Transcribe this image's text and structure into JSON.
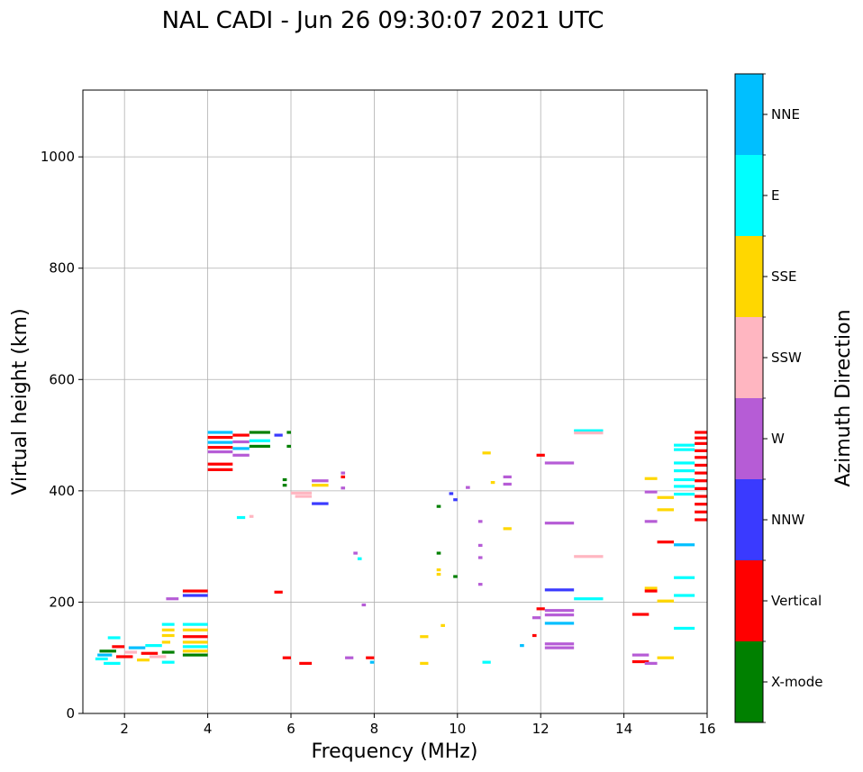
{
  "chart_data": {
    "type": "scatter",
    "title": "NAL CADI - Jun 26 09:30:07 2021 UTC",
    "xlabel": "Frequency (MHz)",
    "ylabel": "Virtual height (km)",
    "xlim": [
      1,
      16
    ],
    "ylim": [
      0,
      1120
    ],
    "x_ticks": [
      2,
      4,
      6,
      8,
      10,
      12,
      14,
      16
    ],
    "y_ticks": [
      0,
      200,
      400,
      600,
      800,
      1000
    ],
    "grid": true,
    "colorbar": {
      "label": "Azimuth Direction",
      "categories": [
        {
          "name": "X-mode",
          "color": "#008000"
        },
        {
          "name": "Vertical",
          "color": "#ff0000"
        },
        {
          "name": "NNW",
          "color": "#3a3aff"
        },
        {
          "name": "W",
          "color": "#b65cd6"
        },
        {
          "name": "SSW",
          "color": "#ffb6c1"
        },
        {
          "name": "SSE",
          "color": "#ffd700"
        },
        {
          "name": "E",
          "color": "#00ffff"
        },
        {
          "name": "NNE",
          "color": "#00bfff"
        }
      ]
    },
    "segments": [
      {
        "x1": 1.3,
        "x2": 1.6,
        "y": 98,
        "c": "E"
      },
      {
        "x1": 1.35,
        "x2": 1.7,
        "y": 105,
        "c": "NNE"
      },
      {
        "x1": 1.4,
        "x2": 1.8,
        "y": 112,
        "c": "X-mode"
      },
      {
        "x1": 1.5,
        "x2": 1.9,
        "y": 90,
        "c": "E"
      },
      {
        "x1": 1.7,
        "x2": 2.0,
        "y": 120,
        "c": "Vertical"
      },
      {
        "x1": 1.6,
        "x2": 1.9,
        "y": 136,
        "c": "E"
      },
      {
        "x1": 1.8,
        "x2": 2.2,
        "y": 102,
        "c": "Vertical"
      },
      {
        "x1": 2.0,
        "x2": 2.3,
        "y": 110,
        "c": "SSW"
      },
      {
        "x1": 2.1,
        "x2": 2.5,
        "y": 118,
        "c": "NNE"
      },
      {
        "x1": 2.3,
        "x2": 2.6,
        "y": 96,
        "c": "SSE"
      },
      {
        "x1": 2.4,
        "x2": 2.8,
        "y": 108,
        "c": "Vertical"
      },
      {
        "x1": 2.5,
        "x2": 2.9,
        "y": 122,
        "c": "E"
      },
      {
        "x1": 2.6,
        "x2": 3.0,
        "y": 102,
        "c": "SSW"
      },
      {
        "x1": 2.9,
        "x2": 3.1,
        "y": 128,
        "c": "SSE"
      },
      {
        "x1": 2.9,
        "x2": 3.2,
        "y": 150,
        "c": "SSE"
      },
      {
        "x1": 2.9,
        "x2": 3.2,
        "y": 160,
        "c": "E"
      },
      {
        "x1": 2.9,
        "x2": 3.2,
        "y": 92,
        "c": "E"
      },
      {
        "x1": 2.9,
        "x2": 3.2,
        "y": 110,
        "c": "X-mode"
      },
      {
        "x1": 2.9,
        "x2": 3.2,
        "y": 140,
        "c": "SSE"
      },
      {
        "x1": 3.4,
        "x2": 4.0,
        "y": 160,
        "c": "E"
      },
      {
        "x1": 3.4,
        "x2": 4.0,
        "y": 150,
        "c": "SSE"
      },
      {
        "x1": 3.4,
        "x2": 4.0,
        "y": 138,
        "c": "Vertical"
      },
      {
        "x1": 3.4,
        "x2": 4.0,
        "y": 128,
        "c": "SSE"
      },
      {
        "x1": 3.4,
        "x2": 4.0,
        "y": 120,
        "c": "E"
      },
      {
        "x1": 3.4,
        "x2": 4.0,
        "y": 112,
        "c": "SSE"
      },
      {
        "x1": 3.4,
        "x2": 4.0,
        "y": 105,
        "c": "X-mode"
      },
      {
        "x1": 3.4,
        "x2": 4.0,
        "y": 220,
        "c": "Vertical"
      },
      {
        "x1": 3.4,
        "x2": 4.0,
        "y": 212,
        "c": "NNW"
      },
      {
        "x1": 3.0,
        "x2": 3.3,
        "y": 206,
        "c": "W"
      },
      {
        "x1": 4.0,
        "x2": 4.6,
        "y": 505,
        "c": "NNE"
      },
      {
        "x1": 4.0,
        "x2": 4.6,
        "y": 496,
        "c": "Vertical"
      },
      {
        "x1": 4.0,
        "x2": 4.6,
        "y": 487,
        "c": "NNE"
      },
      {
        "x1": 4.0,
        "x2": 4.6,
        "y": 478,
        "c": "Vertical"
      },
      {
        "x1": 4.0,
        "x2": 4.6,
        "y": 470,
        "c": "W"
      },
      {
        "x1": 4.0,
        "x2": 4.6,
        "y": 448,
        "c": "Vertical"
      },
      {
        "x1": 4.0,
        "x2": 4.6,
        "y": 438,
        "c": "Vertical"
      },
      {
        "x1": 4.6,
        "x2": 5.0,
        "y": 500,
        "c": "Vertical"
      },
      {
        "x1": 4.6,
        "x2": 5.0,
        "y": 488,
        "c": "W"
      },
      {
        "x1": 4.6,
        "x2": 5.0,
        "y": 476,
        "c": "NNE"
      },
      {
        "x1": 4.6,
        "x2": 5.0,
        "y": 464,
        "c": "W"
      },
      {
        "x1": 5.0,
        "x2": 5.5,
        "y": 505,
        "c": "X-mode"
      },
      {
        "x1": 5.0,
        "x2": 5.5,
        "y": 490,
        "c": "E"
      },
      {
        "x1": 5.0,
        "x2": 5.5,
        "y": 480,
        "c": "X-mode"
      },
      {
        "x1": 5.9,
        "x2": 6.0,
        "y": 505,
        "c": "X-mode"
      },
      {
        "x1": 5.9,
        "x2": 6.0,
        "y": 480,
        "c": "X-mode"
      },
      {
        "x1": 5.6,
        "x2": 5.8,
        "y": 500,
        "c": "NNW"
      },
      {
        "x1": 4.7,
        "x2": 4.9,
        "y": 352,
        "c": "E"
      },
      {
        "x1": 5.0,
        "x2": 5.1,
        "y": 354,
        "c": "SSW"
      },
      {
        "x1": 5.8,
        "x2": 5.9,
        "y": 420,
        "c": "X-mode"
      },
      {
        "x1": 5.8,
        "x2": 5.9,
        "y": 410,
        "c": "X-mode"
      },
      {
        "x1": 6.0,
        "x2": 6.5,
        "y": 396,
        "c": "SSW"
      },
      {
        "x1": 6.1,
        "x2": 6.5,
        "y": 390,
        "c": "SSW"
      },
      {
        "x1": 6.5,
        "x2": 6.9,
        "y": 418,
        "c": "W"
      },
      {
        "x1": 6.5,
        "x2": 6.9,
        "y": 410,
        "c": "SSE"
      },
      {
        "x1": 6.5,
        "x2": 6.9,
        "y": 377,
        "c": "NNW"
      },
      {
        "x1": 7.2,
        "x2": 7.3,
        "y": 432,
        "c": "W"
      },
      {
        "x1": 7.2,
        "x2": 7.3,
        "y": 425,
        "c": "Vertical"
      },
      {
        "x1": 7.2,
        "x2": 7.3,
        "y": 405,
        "c": "W"
      },
      {
        "x1": 5.8,
        "x2": 6.0,
        "y": 100,
        "c": "Vertical"
      },
      {
        "x1": 5.6,
        "x2": 5.8,
        "y": 218,
        "c": "Vertical"
      },
      {
        "x1": 6.2,
        "x2": 6.5,
        "y": 90,
        "c": "Vertical"
      },
      {
        "x1": 7.5,
        "x2": 7.6,
        "y": 288,
        "c": "W"
      },
      {
        "x1": 7.6,
        "x2": 7.7,
        "y": 278,
        "c": "E"
      },
      {
        "x1": 7.7,
        "x2": 7.8,
        "y": 195,
        "c": "W"
      },
      {
        "x1": 7.8,
        "x2": 8.0,
        "y": 100,
        "c": "Vertical"
      },
      {
        "x1": 7.9,
        "x2": 8.0,
        "y": 92,
        "c": "NNE"
      },
      {
        "x1": 7.3,
        "x2": 7.5,
        "y": 100,
        "c": "W"
      },
      {
        "x1": 9.1,
        "x2": 9.3,
        "y": 138,
        "c": "SSE"
      },
      {
        "x1": 9.1,
        "x2": 9.3,
        "y": 90,
        "c": "SSE"
      },
      {
        "x1": 9.5,
        "x2": 9.6,
        "y": 372,
        "c": "X-mode"
      },
      {
        "x1": 9.5,
        "x2": 9.6,
        "y": 288,
        "c": "X-mode"
      },
      {
        "x1": 9.5,
        "x2": 9.6,
        "y": 258,
        "c": "SSE"
      },
      {
        "x1": 9.5,
        "x2": 9.6,
        "y": 250,
        "c": "SSE"
      },
      {
        "x1": 9.6,
        "x2": 9.7,
        "y": 158,
        "c": "SSE"
      },
      {
        "x1": 9.8,
        "x2": 9.9,
        "y": 395,
        "c": "NNW"
      },
      {
        "x1": 9.9,
        "x2": 10.0,
        "y": 384,
        "c": "NNW"
      },
      {
        "x1": 9.9,
        "x2": 10.0,
        "y": 246,
        "c": "X-mode"
      },
      {
        "x1": 10.2,
        "x2": 10.3,
        "y": 406,
        "c": "W"
      },
      {
        "x1": 10.5,
        "x2": 10.6,
        "y": 345,
        "c": "W"
      },
      {
        "x1": 10.5,
        "x2": 10.6,
        "y": 302,
        "c": "W"
      },
      {
        "x1": 10.5,
        "x2": 10.6,
        "y": 280,
        "c": "W"
      },
      {
        "x1": 10.5,
        "x2": 10.6,
        "y": 232,
        "c": "W"
      },
      {
        "x1": 10.6,
        "x2": 10.8,
        "y": 92,
        "c": "E"
      },
      {
        "x1": 10.6,
        "x2": 10.8,
        "y": 468,
        "c": "SSE"
      },
      {
        "x1": 10.8,
        "x2": 10.9,
        "y": 415,
        "c": "SSE"
      },
      {
        "x1": 11.1,
        "x2": 11.3,
        "y": 425,
        "c": "W"
      },
      {
        "x1": 11.1,
        "x2": 11.3,
        "y": 412,
        "c": "W"
      },
      {
        "x1": 11.1,
        "x2": 11.3,
        "y": 332,
        "c": "SSE"
      },
      {
        "x1": 11.5,
        "x2": 11.6,
        "y": 122,
        "c": "NNE"
      },
      {
        "x1": 11.8,
        "x2": 11.9,
        "y": 140,
        "c": "Vertical"
      },
      {
        "x1": 11.8,
        "x2": 12.0,
        "y": 172,
        "c": "W"
      },
      {
        "x1": 11.9,
        "x2": 12.1,
        "y": 188,
        "c": "Vertical"
      },
      {
        "x1": 11.9,
        "x2": 12.1,
        "y": 464,
        "c": "Vertical"
      },
      {
        "x1": 12.1,
        "x2": 12.8,
        "y": 450,
        "c": "W"
      },
      {
        "x1": 12.1,
        "x2": 12.8,
        "y": 342,
        "c": "W"
      },
      {
        "x1": 12.1,
        "x2": 12.8,
        "y": 222,
        "c": "NNW"
      },
      {
        "x1": 12.1,
        "x2": 12.8,
        "y": 185,
        "c": "W"
      },
      {
        "x1": 12.1,
        "x2": 12.8,
        "y": 177,
        "c": "W"
      },
      {
        "x1": 12.1,
        "x2": 12.8,
        "y": 162,
        "c": "NNE"
      },
      {
        "x1": 12.1,
        "x2": 12.8,
        "y": 125,
        "c": "W"
      },
      {
        "x1": 12.1,
        "x2": 12.8,
        "y": 118,
        "c": "W"
      },
      {
        "x1": 12.8,
        "x2": 13.5,
        "y": 508,
        "c": "E"
      },
      {
        "x1": 12.8,
        "x2": 13.5,
        "y": 504,
        "c": "SSW"
      },
      {
        "x1": 12.8,
        "x2": 13.5,
        "y": 282,
        "c": "SSW"
      },
      {
        "x1": 12.8,
        "x2": 13.5,
        "y": 206,
        "c": "E"
      },
      {
        "x1": 14.2,
        "x2": 14.6,
        "y": 178,
        "c": "Vertical"
      },
      {
        "x1": 14.2,
        "x2": 14.6,
        "y": 105,
        "c": "W"
      },
      {
        "x1": 14.2,
        "x2": 14.6,
        "y": 93,
        "c": "Vertical"
      },
      {
        "x1": 14.5,
        "x2": 14.8,
        "y": 422,
        "c": "SSE"
      },
      {
        "x1": 14.5,
        "x2": 14.8,
        "y": 398,
        "c": "W"
      },
      {
        "x1": 14.5,
        "x2": 14.8,
        "y": 345,
        "c": "W"
      },
      {
        "x1": 14.5,
        "x2": 14.8,
        "y": 225,
        "c": "SSE"
      },
      {
        "x1": 14.5,
        "x2": 14.8,
        "y": 220,
        "c": "Vertical"
      },
      {
        "x1": 14.5,
        "x2": 14.8,
        "y": 90,
        "c": "W"
      },
      {
        "x1": 14.8,
        "x2": 15.2,
        "y": 388,
        "c": "SSE"
      },
      {
        "x1": 14.8,
        "x2": 15.2,
        "y": 366,
        "c": "SSE"
      },
      {
        "x1": 14.8,
        "x2": 15.2,
        "y": 308,
        "c": "Vertical"
      },
      {
        "x1": 14.8,
        "x2": 15.2,
        "y": 202,
        "c": "SSE"
      },
      {
        "x1": 14.8,
        "x2": 15.2,
        "y": 100,
        "c": "SSE"
      },
      {
        "x1": 15.2,
        "x2": 15.7,
        "y": 482,
        "c": "E"
      },
      {
        "x1": 15.2,
        "x2": 15.7,
        "y": 474,
        "c": "E"
      },
      {
        "x1": 15.2,
        "x2": 15.7,
        "y": 450,
        "c": "E"
      },
      {
        "x1": 15.2,
        "x2": 15.7,
        "y": 436,
        "c": "E"
      },
      {
        "x1": 15.2,
        "x2": 15.7,
        "y": 420,
        "c": "E"
      },
      {
        "x1": 15.2,
        "x2": 15.7,
        "y": 408,
        "c": "E"
      },
      {
        "x1": 15.2,
        "x2": 15.7,
        "y": 394,
        "c": "E"
      },
      {
        "x1": 15.2,
        "x2": 15.7,
        "y": 303,
        "c": "NNE"
      },
      {
        "x1": 15.2,
        "x2": 15.7,
        "y": 244,
        "c": "E"
      },
      {
        "x1": 15.2,
        "x2": 15.7,
        "y": 212,
        "c": "E"
      },
      {
        "x1": 15.2,
        "x2": 15.7,
        "y": 153,
        "c": "E"
      },
      {
        "x1": 15.7,
        "x2": 16.0,
        "y": 505,
        "c": "Vertical"
      },
      {
        "x1": 15.7,
        "x2": 16.0,
        "y": 495,
        "c": "Vertical"
      },
      {
        "x1": 15.7,
        "x2": 16.0,
        "y": 485,
        "c": "Vertical"
      },
      {
        "x1": 15.7,
        "x2": 16.0,
        "y": 472,
        "c": "Vertical"
      },
      {
        "x1": 15.7,
        "x2": 16.0,
        "y": 460,
        "c": "Vertical"
      },
      {
        "x1": 15.7,
        "x2": 16.0,
        "y": 446,
        "c": "Vertical"
      },
      {
        "x1": 15.7,
        "x2": 16.0,
        "y": 432,
        "c": "Vertical"
      },
      {
        "x1": 15.7,
        "x2": 16.0,
        "y": 418,
        "c": "Vertical"
      },
      {
        "x1": 15.7,
        "x2": 16.0,
        "y": 404,
        "c": "Vertical"
      },
      {
        "x1": 15.7,
        "x2": 16.0,
        "y": 390,
        "c": "Vertical"
      },
      {
        "x1": 15.7,
        "x2": 16.0,
        "y": 376,
        "c": "Vertical"
      },
      {
        "x1": 15.7,
        "x2": 16.0,
        "y": 362,
        "c": "Vertical"
      },
      {
        "x1": 15.7,
        "x2": 16.0,
        "y": 348,
        "c": "Vertical"
      }
    ]
  }
}
